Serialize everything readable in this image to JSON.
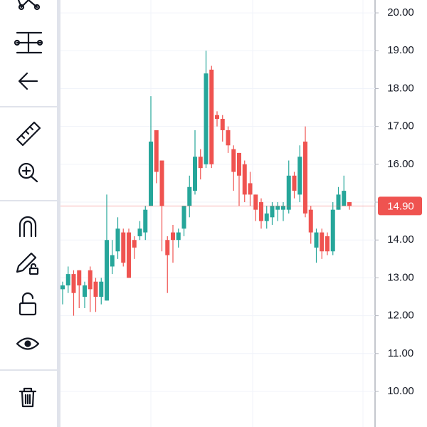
{
  "chart_data": {
    "type": "candlestick",
    "open": [
      12.7,
      12.8,
      13.1,
      13.2,
      12.5,
      13.2,
      12.9,
      12.5,
      12.4,
      13.3,
      13.7,
      14.2,
      14.2,
      14.0,
      14.1,
      14.2,
      14.9,
      16.9,
      16.1,
      14.0,
      14.2,
      14.0,
      14.3,
      14.9,
      15.3,
      16.2,
      16.0,
      18.5,
      17.3,
      17.2,
      16.9,
      16.4,
      16.3,
      16.0,
      15.5,
      15.2,
      15.0,
      14.5,
      14.6,
      14.8,
      14.8,
      14.8,
      15.7,
      15.2,
      16.6,
      14.8,
      13.8,
      14.2,
      14.1,
      13.7,
      14.8,
      14.9,
      15.0
    ],
    "high": [
      12.9,
      13.3,
      13.2,
      13.2,
      12.9,
      13.3,
      13.0,
      13.0,
      15.2,
      14.0,
      14.6,
      14.3,
      14.3,
      14.1,
      14.5,
      14.9,
      17.8,
      16.9,
      16.1,
      14.1,
      14.4,
      14.3,
      14.9,
      15.7,
      16.9,
      16.4,
      19.0,
      18.6,
      17.4,
      17.3,
      17.0,
      16.5,
      16.3,
      16.1,
      15.8,
      15.2,
      15.1,
      14.9,
      15.0,
      15.0,
      15.0,
      16.1,
      15.8,
      16.5,
      17.0,
      14.9,
      14.3,
      14.3,
      14.2,
      15.0,
      15.4,
      15.7,
      15.0
    ],
    "low": [
      12.3,
      12.6,
      12.0,
      12.2,
      12.2,
      12.1,
      12.1,
      12.3,
      12.4,
      13.1,
      13.5,
      13.3,
      13.0,
      13.5,
      14.0,
      14.0,
      14.9,
      15.5,
      13.7,
      12.6,
      13.4,
      13.8,
      14.1,
      14.6,
      15.2,
      15.6,
      15.9,
      15.9,
      17.0,
      16.6,
      16.3,
      15.3,
      14.9,
      15.0,
      14.9,
      14.5,
      14.3,
      14.3,
      14.4,
      14.5,
      14.5,
      14.7,
      15.1,
      15.0,
      14.6,
      13.9,
      13.4,
      13.5,
      13.6,
      13.6,
      14.8,
      14.9,
      14.8
    ],
    "close": [
      12.8,
      13.1,
      12.6,
      12.8,
      12.8,
      12.7,
      12.5,
      12.9,
      14.0,
      13.6,
      14.3,
      13.4,
      13.0,
      13.8,
      14.3,
      14.8,
      16.6,
      15.8,
      14.9,
      13.6,
      14.0,
      14.2,
      14.9,
      15.4,
      16.2,
      15.9,
      18.4,
      16.0,
      17.2,
      16.9,
      16.5,
      15.8,
      15.7,
      15.2,
      15.2,
      14.8,
      14.5,
      14.7,
      14.9,
      14.9,
      14.9,
      15.7,
      15.3,
      16.2,
      14.7,
      14.2,
      14.2,
      13.7,
      13.7,
      14.8,
      15.2,
      15.3,
      14.9
    ],
    "up_color": "#26a69a",
    "down_color": "#ef5350",
    "ylim": [
      9.06,
      20.34
    ],
    "yticks": [
      {
        "value": 20,
        "label": "20.00"
      },
      {
        "value": 19,
        "label": "19.00"
      },
      {
        "value": 18,
        "label": "18.00"
      },
      {
        "value": 17,
        "label": "17.00"
      },
      {
        "value": 16,
        "label": "16.00"
      },
      {
        "value": 15,
        "label": "15.00"
      },
      {
        "value": 14,
        "label": "14.00"
      },
      {
        "value": 13,
        "label": "13.00"
      },
      {
        "value": 12,
        "label": "12.00"
      },
      {
        "value": 11,
        "label": "11.00"
      },
      {
        "value": 10,
        "label": "10.00"
      }
    ],
    "last_price": 14.9,
    "last_price_label": "14.90",
    "grid": true
  }
}
